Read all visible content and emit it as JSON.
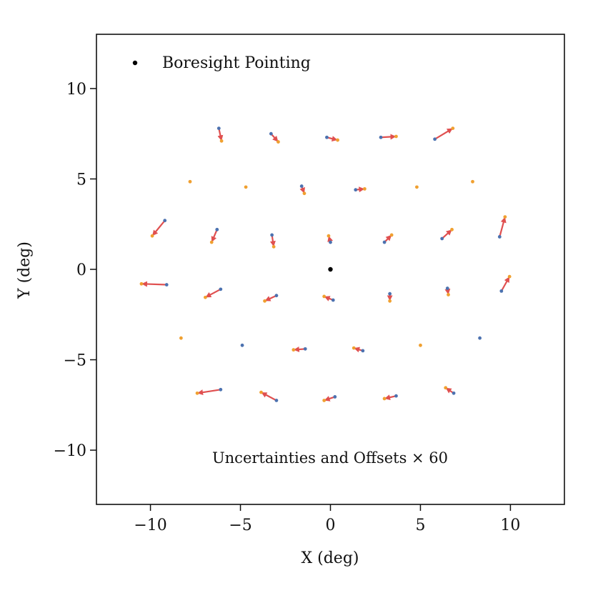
{
  "chart_data": {
    "type": "scatter",
    "xlabel": "X (deg)",
    "ylabel": "Y (deg)",
    "xlim": [
      -13,
      13
    ],
    "ylim": [
      -13,
      13
    ],
    "xticks": [
      -10,
      -5,
      0,
      5,
      10
    ],
    "yticks": [
      -10,
      -5,
      0,
      5,
      10
    ],
    "xtick_labels": [
      "−10",
      "−5",
      "0",
      "5",
      "10"
    ],
    "ytick_labels": [
      "−10",
      "−5",
      "0",
      "5",
      "10"
    ],
    "grid": false,
    "legend": {
      "position": "top-left",
      "entries": [
        {
          "label": "Boresight Pointing",
          "color": "#000000"
        }
      ]
    },
    "annotation": "Uncertainties and Offsets × 60",
    "boresight": {
      "x": 0,
      "y": 0
    },
    "colors": {
      "nominal": "#4C72B0",
      "measured": "#F0A030",
      "arrow": "#E05050",
      "boresight": "#000000"
    },
    "vectors": [
      {
        "x": -6.2,
        "y": 7.8,
        "x2": -6.05,
        "y2": 7.1
      },
      {
        "x": -3.3,
        "y": 7.5,
        "x2": -2.9,
        "y2": 7.05
      },
      {
        "x": -0.2,
        "y": 7.3,
        "x2": 0.4,
        "y2": 7.15
      },
      {
        "x": 2.8,
        "y": 7.3,
        "x2": 3.65,
        "y2": 7.35
      },
      {
        "x": 5.8,
        "y": 7.2,
        "x2": 6.8,
        "y2": 7.8
      },
      {
        "x": -1.6,
        "y": 4.6,
        "x2": -1.45,
        "y2": 4.2
      },
      {
        "x": 1.4,
        "y": 4.4,
        "x2": 1.9,
        "y2": 4.45
      },
      {
        "x": -9.2,
        "y": 2.7,
        "x2": -9.9,
        "y2": 1.85
      },
      {
        "x": -6.3,
        "y": 2.2,
        "x2": -6.6,
        "y2": 1.5
      },
      {
        "x": -3.25,
        "y": 1.9,
        "x2": -3.15,
        "y2": 1.25
      },
      {
        "x": 0.0,
        "y": 1.5,
        "x2": -0.1,
        "y2": 1.85
      },
      {
        "x": 3.0,
        "y": 1.5,
        "x2": 3.4,
        "y2": 1.9
      },
      {
        "x": 6.2,
        "y": 1.7,
        "x2": 6.75,
        "y2": 2.2
      },
      {
        "x": 9.4,
        "y": 1.8,
        "x2": 9.7,
        "y2": 2.9
      },
      {
        "x": -9.1,
        "y": -0.85,
        "x2": -10.5,
        "y2": -0.8
      },
      {
        "x": -6.1,
        "y": -1.1,
        "x2": -6.95,
        "y2": -1.55
      },
      {
        "x": -3.0,
        "y": -1.45,
        "x2": -3.65,
        "y2": -1.75
      },
      {
        "x": 0.15,
        "y": -1.7,
        "x2": -0.35,
        "y2": -1.5
      },
      {
        "x": 3.3,
        "y": -1.35,
        "x2": 3.3,
        "y2": -1.75
      },
      {
        "x": 6.5,
        "y": -1.05,
        "x2": 6.55,
        "y2": -1.4
      },
      {
        "x": 9.5,
        "y": -1.2,
        "x2": 9.95,
        "y2": -0.4
      },
      {
        "x": -1.4,
        "y": -4.4,
        "x2": -2.05,
        "y2": -4.45
      },
      {
        "x": 1.8,
        "y": -4.5,
        "x2": 1.3,
        "y2": -4.35
      },
      {
        "x": -6.1,
        "y": -6.65,
        "x2": -7.4,
        "y2": -6.85
      },
      {
        "x": -3.0,
        "y": -7.25,
        "x2": -3.85,
        "y2": -6.8
      },
      {
        "x": 0.25,
        "y": -7.05,
        "x2": -0.35,
        "y2": -7.25
      },
      {
        "x": 3.65,
        "y": -7.0,
        "x2": 3.0,
        "y2": -7.15
      },
      {
        "x": 6.85,
        "y": -6.85,
        "x2": 6.4,
        "y2": -6.55
      }
    ],
    "blue_only": [
      {
        "x": -4.9,
        "y": -4.2
      },
      {
        "x": 8.3,
        "y": -3.8
      }
    ],
    "orange_only": [
      {
        "x": -7.8,
        "y": 4.85
      },
      {
        "x": -4.7,
        "y": 4.55
      },
      {
        "x": 4.8,
        "y": 4.55
      },
      {
        "x": 7.9,
        "y": 4.85
      },
      {
        "x": -8.3,
        "y": -3.8
      },
      {
        "x": 5.0,
        "y": -4.2
      }
    ]
  }
}
